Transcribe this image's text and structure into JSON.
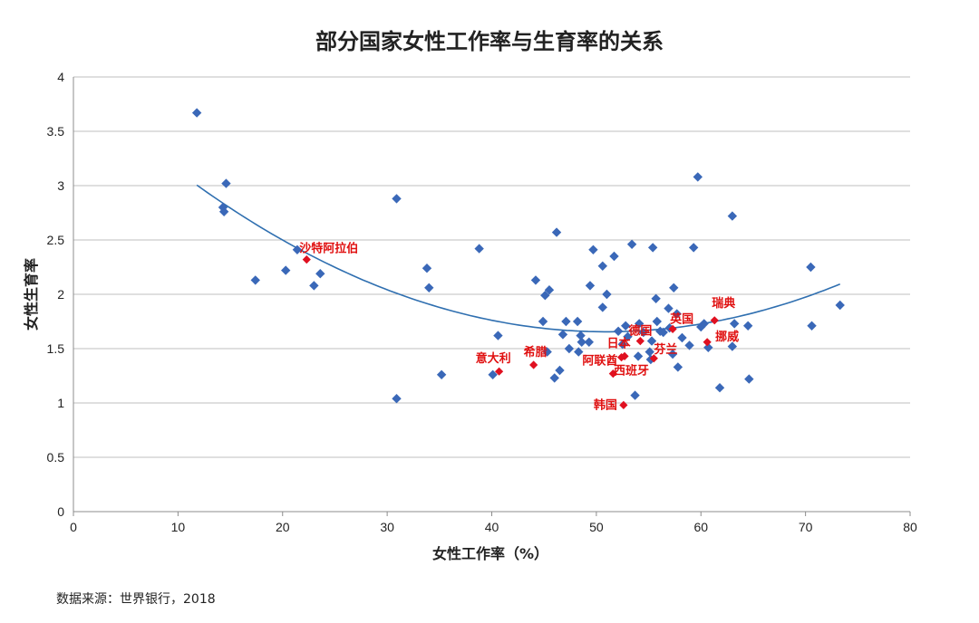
{
  "chart_data": {
    "type": "scatter",
    "title": "部分国家女性工作率与生育率的关系",
    "xlabel": "女性工作率（%）",
    "ylabel": "女性生育率",
    "xlim": [
      0,
      80
    ],
    "ylim": [
      0,
      4
    ],
    "x_ticks": [
      0,
      10,
      20,
      30,
      40,
      50,
      60,
      70,
      80
    ],
    "y_ticks": [
      0,
      0.5,
      1,
      1.5,
      2,
      2.5,
      3,
      3.5,
      4
    ],
    "grid": "horizontal",
    "colors": {
      "points": "#3a68b8",
      "highlight": "#e01020",
      "trendline": "#2f6fb0",
      "grid": "#bfbfbf"
    },
    "trendline": {
      "type": "polynomial",
      "x_range": [
        11.8,
        73.3
      ],
      "coefficients": [
        3.941,
        -0.0897,
        0.00088
      ]
    },
    "points": [
      [
        11.8,
        3.67
      ],
      [
        14.6,
        3.02
      ],
      [
        14.3,
        2.8
      ],
      [
        14.4,
        2.76
      ],
      [
        17.4,
        2.13
      ],
      [
        20.3,
        2.22
      ],
      [
        21.4,
        2.41
      ],
      [
        23.0,
        2.08
      ],
      [
        23.6,
        2.19
      ],
      [
        30.9,
        2.88
      ],
      [
        30.9,
        1.04
      ],
      [
        33.8,
        2.24
      ],
      [
        34.0,
        2.06
      ],
      [
        35.2,
        1.26
      ],
      [
        38.8,
        2.42
      ],
      [
        40.1,
        1.26
      ],
      [
        40.6,
        1.62
      ],
      [
        44.2,
        2.13
      ],
      [
        44.9,
        1.75
      ],
      [
        45.1,
        1.99
      ],
      [
        45.5,
        2.04
      ],
      [
        45.3,
        1.47
      ],
      [
        46.2,
        2.57
      ],
      [
        46.5,
        1.3
      ],
      [
        46.0,
        1.23
      ],
      [
        46.8,
        1.63
      ],
      [
        47.1,
        1.75
      ],
      [
        47.4,
        1.5
      ],
      [
        48.2,
        1.75
      ],
      [
        48.3,
        1.47
      ],
      [
        48.6,
        1.56
      ],
      [
        48.5,
        1.62
      ],
      [
        49.3,
        1.56
      ],
      [
        49.4,
        2.08
      ],
      [
        49.7,
        2.41
      ],
      [
        50.6,
        2.26
      ],
      [
        50.6,
        1.88
      ],
      [
        51.0,
        2.0
      ],
      [
        51.7,
        2.35
      ],
      [
        52.1,
        1.66
      ],
      [
        52.5,
        1.54
      ],
      [
        52.8,
        1.71
      ],
      [
        53.0,
        1.61
      ],
      [
        53.4,
        2.46
      ],
      [
        53.7,
        1.07
      ],
      [
        54.0,
        1.43
      ],
      [
        54.1,
        1.73
      ],
      [
        54.5,
        1.65
      ],
      [
        55.1,
        1.47
      ],
      [
        55.2,
        1.4
      ],
      [
        55.3,
        1.57
      ],
      [
        55.4,
        2.43
      ],
      [
        55.7,
        1.96
      ],
      [
        55.8,
        1.75
      ],
      [
        56.1,
        1.66
      ],
      [
        56.4,
        1.65
      ],
      [
        56.9,
        1.87
      ],
      [
        57.0,
        1.69
      ],
      [
        57.3,
        1.45
      ],
      [
        57.4,
        2.06
      ],
      [
        57.7,
        1.82
      ],
      [
        57.8,
        1.33
      ],
      [
        58.2,
        1.6
      ],
      [
        58.9,
        1.53
      ],
      [
        59.3,
        2.43
      ],
      [
        59.7,
        3.08
      ],
      [
        60.0,
        1.7
      ],
      [
        60.3,
        1.73
      ],
      [
        60.7,
        1.51
      ],
      [
        61.8,
        1.14
      ],
      [
        63.0,
        1.52
      ],
      [
        63.0,
        2.72
      ],
      [
        63.2,
        1.73
      ],
      [
        64.5,
        1.71
      ],
      [
        64.6,
        1.22
      ],
      [
        70.5,
        2.25
      ],
      [
        70.6,
        1.71
      ],
      [
        73.3,
        1.9
      ]
    ],
    "highlighted": [
      {
        "name": "沙特阿拉伯",
        "x": 22.3,
        "y": 2.32
      },
      {
        "name": "意大利",
        "x": 40.7,
        "y": 1.29
      },
      {
        "name": "希腊",
        "x": 44.0,
        "y": 1.35
      },
      {
        "name": "阿联酋",
        "x": 51.6,
        "y": 1.27
      },
      {
        "name": "日本",
        "x": 52.4,
        "y": 1.42
      },
      {
        "name": "西班牙",
        "x": 52.7,
        "y": 1.43
      },
      {
        "name": "韩国",
        "x": 52.6,
        "y": 0.98
      },
      {
        "name": "德国",
        "x": 54.2,
        "y": 1.57
      },
      {
        "name": "芬兰",
        "x": 55.5,
        "y": 1.41
      },
      {
        "name": "英国",
        "x": 57.3,
        "y": 1.68
      },
      {
        "name": "瑞典",
        "x": 61.3,
        "y": 1.76
      },
      {
        "name": "挪威",
        "x": 60.6,
        "y": 1.56
      }
    ]
  },
  "source": "数据来源：世界银行，2018"
}
